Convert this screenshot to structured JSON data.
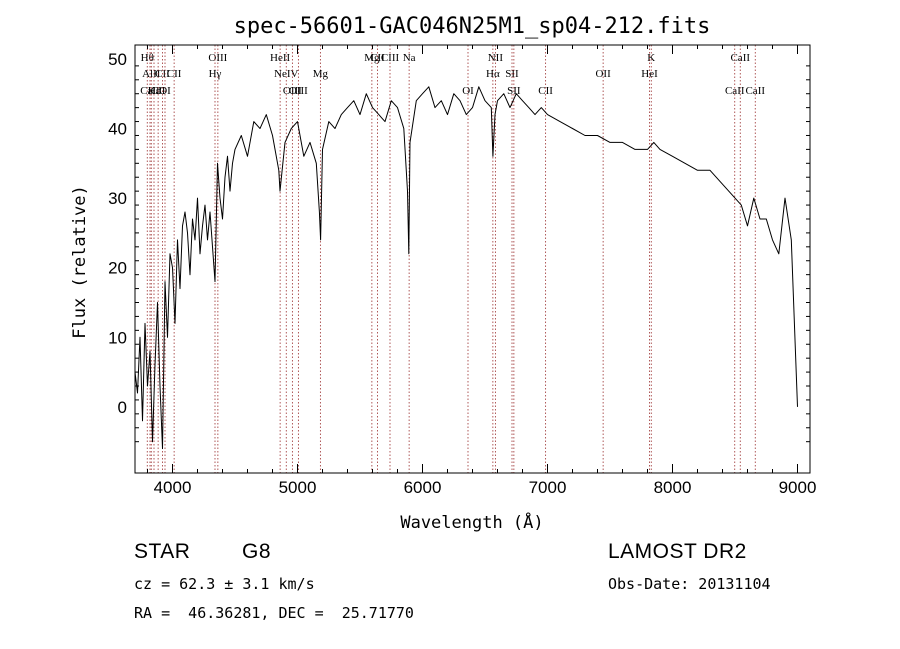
{
  "chart_data": {
    "type": "line",
    "title": "spec-56601-GAC046N25M1_sp04-212.fits",
    "xlabel": "Wavelength (Å)",
    "ylabel": "Flux (relative)",
    "xlim": [
      3700,
      9100
    ],
    "ylim": [
      -9.5,
      52
    ],
    "xticks": [
      4000,
      5000,
      6000,
      7000,
      8000,
      9000
    ],
    "yticks": [
      0,
      10,
      20,
      30,
      40,
      50
    ],
    "grid": false,
    "series": [
      {
        "x": [
          3700,
          3720,
          3740,
          3760,
          3780,
          3800,
          3820,
          3840,
          3860,
          3880,
          3900,
          3920,
          3940,
          3960,
          3980,
          4000,
          4020,
          4040,
          4060,
          4080,
          4100,
          4120,
          4140,
          4160,
          4180,
          4200,
          4220,
          4240,
          4260,
          4280,
          4300,
          4320,
          4340,
          4360,
          4380,
          4400,
          4420,
          4440,
          4460,
          4480,
          4500,
          4550,
          4600,
          4650,
          4700,
          4750,
          4800,
          4850,
          4860,
          4900,
          4950,
          5000,
          5050,
          5100,
          5150,
          5175,
          5185,
          5200,
          5250,
          5300,
          5350,
          5400,
          5450,
          5500,
          5550,
          5600,
          5650,
          5700,
          5750,
          5800,
          5850,
          5880,
          5890,
          5900,
          5950,
          6000,
          6050,
          6100,
          6150,
          6200,
          6250,
          6300,
          6350,
          6400,
          6450,
          6500,
          6550,
          6563,
          6580,
          6600,
          6650,
          6700,
          6750,
          6800,
          6850,
          6900,
          6950,
          7000,
          7100,
          7200,
          7300,
          7400,
          7500,
          7600,
          7700,
          7800,
          7850,
          7900,
          8000,
          8100,
          8200,
          8300,
          8400,
          8500,
          8550,
          8600,
          8650,
          8700,
          8750,
          8800,
          8850,
          8900,
          8950,
          9000
        ],
        "values": [
          5,
          2,
          10,
          -2,
          12,
          3,
          8,
          -5,
          6,
          15,
          3,
          -6,
          18,
          10,
          22,
          20,
          12,
          24,
          17,
          26,
          28,
          25,
          19,
          27,
          24,
          30,
          22,
          26,
          29,
          24,
          28,
          23,
          18,
          35,
          30,
          27,
          33,
          36,
          31,
          35,
          37,
          39,
          36,
          41,
          40,
          42,
          39,
          34,
          31,
          38,
          40,
          41,
          36,
          38,
          35,
          28,
          24,
          37,
          41,
          40,
          42,
          43,
          44,
          42,
          45,
          43,
          42,
          41,
          44,
          43,
          40,
          31,
          22,
          38,
          44,
          45,
          46,
          43,
          44,
          42,
          45,
          44,
          42,
          43,
          46,
          44,
          43,
          36,
          42,
          44,
          45,
          43,
          45,
          44,
          43,
          42,
          43,
          42,
          41,
          40,
          39,
          39,
          38,
          38,
          37,
          37,
          38,
          37,
          36,
          35,
          34,
          34,
          32,
          30,
          29,
          26,
          30,
          27,
          27,
          24,
          22,
          30,
          24,
          0
        ]
      }
    ],
    "lines": [
      {
        "name": "Hθ",
        "x": 3798,
        "row": 0
      },
      {
        "name": "AlII",
        "x": 3830,
        "row": 1
      },
      {
        "name": "CaII",
        "x": 3820,
        "row": 2
      },
      {
        "name": "Hε",
        "x": 3852,
        "row": 2
      },
      {
        "name": "CII",
        "x": 3920,
        "row": 1
      },
      {
        "name": "CII",
        "x": 3885,
        "row": 2
      },
      {
        "name": "OI",
        "x": 3940,
        "row": 2
      },
      {
        "name": "CII",
        "x": 4013,
        "row": 1
      },
      {
        "name": "OIII",
        "x": 4363,
        "row": 0
      },
      {
        "name": "Hγ",
        "x": 4340,
        "row": 1
      },
      {
        "name": "HeII",
        "x": 4861,
        "row": 0
      },
      {
        "name": "NeIV",
        "x": 4910,
        "row": 1
      },
      {
        "name": "OIII",
        "x": 4959,
        "row": 2
      },
      {
        "name": "OIII",
        "x": 5007,
        "row": 2
      },
      {
        "name": "Mg",
        "x": 5183,
        "row": 1
      },
      {
        "name": "Mg",
        "x": 5595,
        "row": 0
      },
      {
        "name": "CII",
        "x": 5640,
        "row": 0
      },
      {
        "name": "CIII",
        "x": 5740,
        "row": 0
      },
      {
        "name": "Na",
        "x": 5893,
        "row": 0
      },
      {
        "name": "OI",
        "x": 6364,
        "row": 2
      },
      {
        "name": "NII",
        "x": 6583,
        "row": 0
      },
      {
        "name": "Hα",
        "x": 6563,
        "row": 1
      },
      {
        "name": "SII",
        "x": 6716,
        "row": 1
      },
      {
        "name": "SII",
        "x": 6731,
        "row": 2
      },
      {
        "name": "CII",
        "x": 6985,
        "row": 2
      },
      {
        "name": "OII",
        "x": 7445,
        "row": 1
      },
      {
        "name": "K",
        "x": 7830,
        "row": 0
      },
      {
        "name": "HeI",
        "x": 7816,
        "row": 1
      },
      {
        "name": "CaII",
        "x": 8542,
        "row": 0
      },
      {
        "name": "CaII",
        "x": 8498,
        "row": 2
      },
      {
        "name": "CaII",
        "x": 8662,
        "row": 2
      }
    ]
  },
  "info": {
    "class": "STAR",
    "subclass": "G8",
    "release": "LAMOST DR2",
    "cz": "cz = 62.3 ± 3.1 km/s",
    "obs_date": "Obs-Date: 20131104",
    "radec": "RA =  46.36281, DEC =  25.71770"
  }
}
